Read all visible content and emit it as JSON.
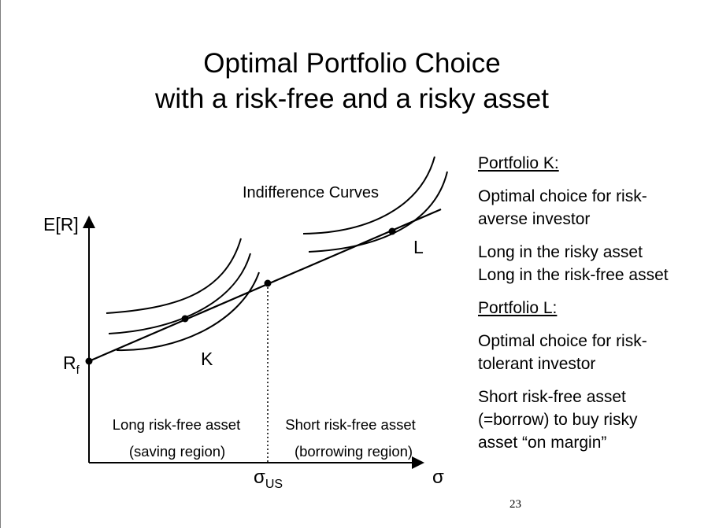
{
  "title": {
    "line1": "Optimal Portfolio Choice",
    "line2": "with a risk-free and a risky asset"
  },
  "diagram": {
    "y_axis_label": "E[R]",
    "x_axis_label": "σ",
    "rf_label_main": "R",
    "rf_label_sub": "f",
    "sigma_us_main": "σ",
    "sigma_us_sub": "US",
    "indifference_label": "Indifference Curves",
    "point_k_label": "K",
    "point_l_label": "L",
    "left_region_line1": "Long risk-free asset",
    "left_region_line2": "(saving region)",
    "right_region_line1": "Short risk-free asset",
    "right_region_line2": "(borrowing region)"
  },
  "notes": {
    "portfolio_k_heading": "Portfolio K:",
    "k_para1_line1": "Optimal choice for risk-",
    "k_para1_line2": "averse investor",
    "k_para2_line1": "Long in the risky asset",
    "k_para2_line2": "Long in the risk-free asset",
    "portfolio_l_heading": "Portfolio L:",
    "l_para1_line1": "Optimal choice for risk-",
    "l_para1_line2": "tolerant investor",
    "l_para2_line1": "Short risk-free asset",
    "l_para2_line2": "(=borrow) to buy risky",
    "l_para2_line3": "asset “on margin”"
  },
  "page_number": "23"
}
